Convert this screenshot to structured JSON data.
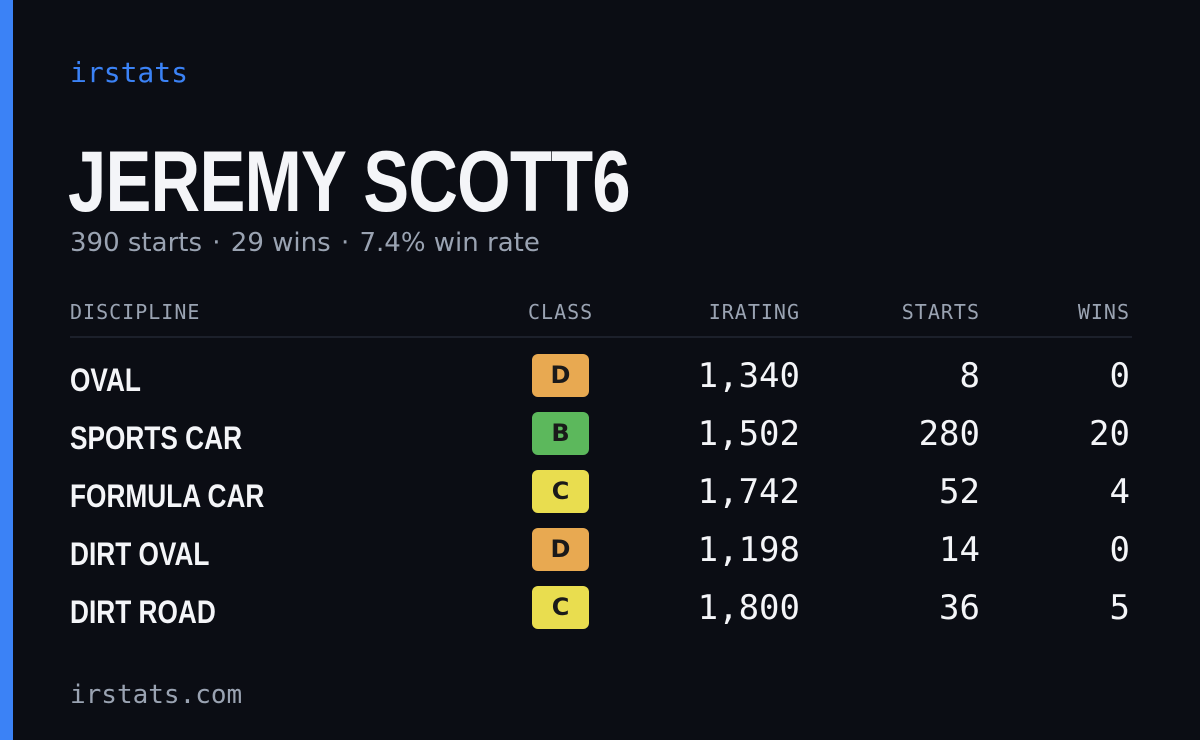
{
  "brand": "irstats",
  "driver": {
    "name": "JEREMY SCOTT6",
    "starts_text": "390 starts",
    "wins_text": "29 wins",
    "win_rate_text": "7.4% win rate",
    "separator": "·"
  },
  "table": {
    "headers": {
      "discipline": "DISCIPLINE",
      "class": "CLASS",
      "irating": "IRATING",
      "starts": "STARTS",
      "wins": "WINS"
    },
    "rows": [
      {
        "discipline": "OVAL",
        "class": "D",
        "class_color": "#e8a951",
        "irating": "1,340",
        "starts": "8",
        "wins": "0"
      },
      {
        "discipline": "SPORTS CAR",
        "class": "B",
        "class_color": "#5cb85c",
        "irating": "1,502",
        "starts": "280",
        "wins": "20"
      },
      {
        "discipline": "FORMULA CAR",
        "class": "C",
        "class_color": "#e9dd4f",
        "irating": "1,742",
        "starts": "52",
        "wins": "4"
      },
      {
        "discipline": "DIRT OVAL",
        "class": "D",
        "class_color": "#e8a951",
        "irating": "1,198",
        "starts": "14",
        "wins": "0"
      },
      {
        "discipline": "DIRT ROAD",
        "class": "C",
        "class_color": "#e9dd4f",
        "irating": "1,800",
        "starts": "36",
        "wins": "5"
      }
    ]
  },
  "footer": "irstats.com",
  "colors": {
    "accent": "#3b82f6",
    "background": "#0b0d14",
    "text_primary": "#f4f5f8",
    "text_muted": "#9aa3b2"
  }
}
